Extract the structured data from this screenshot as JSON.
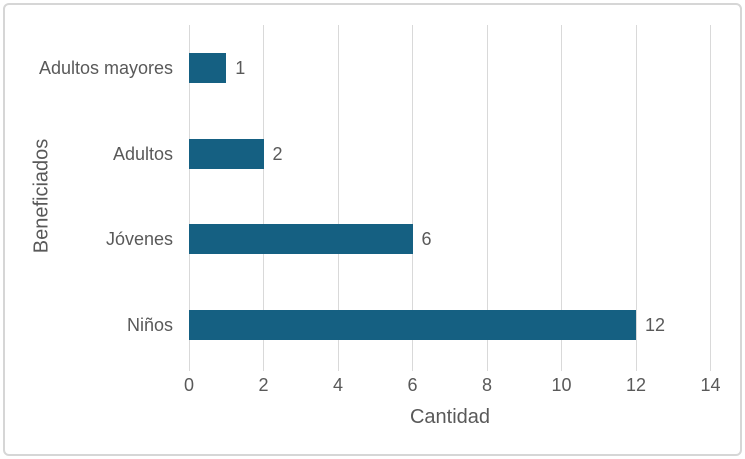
{
  "chart_data": {
    "type": "bar",
    "orientation": "horizontal",
    "title": "",
    "xlabel": "Cantidad",
    "ylabel": "Beneficiados",
    "categories": [
      "Adultos mayores",
      "Adultos",
      "Jóvenes",
      "Niños"
    ],
    "values": [
      1,
      2,
      6,
      12
    ],
    "xlim": [
      0,
      14
    ],
    "xticks": [
      0,
      2,
      4,
      6,
      8,
      10,
      12,
      14
    ],
    "grid": true,
    "legend": false,
    "data_labels": true,
    "colors": {
      "bar": "#156082",
      "text": "#595959",
      "gridline": "#D9D9D9",
      "frame_border": "#D6D6D6",
      "background": "#FFFFFF"
    }
  }
}
